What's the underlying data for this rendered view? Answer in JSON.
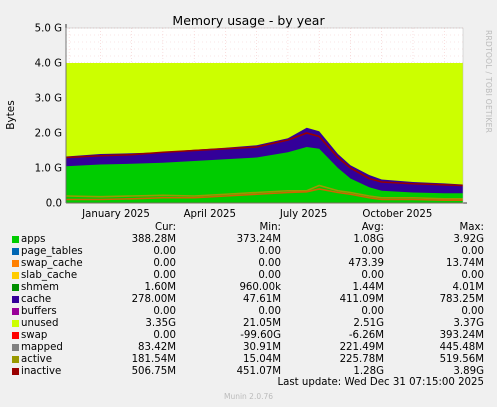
{
  "chart_data": {
    "type": "area",
    "title": "Memory usage - by year",
    "ylabel": "Bytes",
    "ylim": [
      0,
      5.0
    ],
    "yticks": [
      "0.0",
      "1.0 G",
      "2.0 G",
      "3.0 G",
      "4.0 G",
      "5.0 G"
    ],
    "xticks": [
      "January 2025",
      "April 2025",
      "July 2025",
      "October 2025"
    ],
    "grid": true,
    "x_months": [
      -1.1,
      11.6
    ],
    "unused_top_g": 4.0,
    "series": [
      {
        "name": "apps",
        "color": "#00cc00",
        "x": [
          -1.1,
          0,
          1,
          2,
          3,
          4,
          5,
          6,
          6.6,
          7.0,
          7.6,
          8,
          8.6,
          9,
          10,
          11,
          11.6
        ],
        "values": [
          1.05,
          1.1,
          1.12,
          1.15,
          1.2,
          1.25,
          1.3,
          1.45,
          1.6,
          1.55,
          1.0,
          0.7,
          0.45,
          0.35,
          0.3,
          0.28,
          0.28
        ]
      },
      {
        "name": "swap_cache",
        "color": "#ff6600",
        "x": [
          -1.1,
          11.6
        ],
        "values": [
          0.0,
          0.0
        ]
      },
      {
        "name": "cache",
        "color": "#330099",
        "x": [
          -1.1,
          0,
          1,
          2,
          3,
          4,
          5,
          6,
          6.6,
          7.0,
          7.6,
          8,
          8.6,
          9,
          10,
          11,
          11.6
        ],
        "values": [
          0.28,
          0.3,
          0.3,
          0.3,
          0.32,
          0.33,
          0.35,
          0.4,
          0.55,
          0.5,
          0.4,
          0.38,
          0.35,
          0.32,
          0.3,
          0.28,
          0.25
        ]
      },
      {
        "name": "unused",
        "color": "#ccff00",
        "top": 4.0
      },
      {
        "name": "inactive",
        "color": "#990000",
        "x": [
          -1.1,
          0,
          1,
          2,
          3,
          4,
          5,
          6,
          6.6,
          7.0,
          7.6,
          8,
          8.6,
          9,
          10,
          11,
          11.6
        ],
        "values": [
          1.3,
          1.35,
          1.38,
          1.45,
          1.5,
          1.55,
          1.6,
          1.8,
          2.0,
          1.9,
          1.3,
          1.0,
          0.7,
          0.6,
          0.55,
          0.52,
          0.5
        ]
      },
      {
        "name": "active",
        "color": "#999900",
        "x": [
          -1.1,
          0,
          1,
          2,
          3,
          4,
          5,
          6,
          6.6,
          7.0,
          7.6,
          8,
          8.6,
          9,
          10,
          11,
          11.6
        ],
        "values": [
          0.2,
          0.18,
          0.2,
          0.22,
          0.2,
          0.25,
          0.3,
          0.35,
          0.35,
          0.5,
          0.35,
          0.3,
          0.2,
          0.15,
          0.15,
          0.12,
          0.12
        ]
      },
      {
        "name": "mapped",
        "color": "#cc6600",
        "x": [
          -1.1,
          0,
          1,
          2,
          3,
          4,
          5,
          6,
          6.6,
          7.0,
          7.6,
          8,
          8.6,
          9,
          10,
          11,
          11.6
        ],
        "values": [
          0.1,
          0.1,
          0.12,
          0.15,
          0.15,
          0.2,
          0.25,
          0.3,
          0.32,
          0.4,
          0.3,
          0.25,
          0.15,
          0.1,
          0.1,
          0.08,
          0.08
        ]
      }
    ]
  },
  "legend": {
    "columns": [
      "Cur:",
      "Min:",
      "Avg:",
      "Max:"
    ],
    "rows": [
      {
        "name": "apps",
        "color": "#00cc00",
        "values": [
          "388.28M",
          "373.24M",
          "1.08G",
          "3.92G"
        ]
      },
      {
        "name": "page_tables",
        "color": "#0066b3",
        "values": [
          "0.00",
          "0.00",
          "0.00",
          "0.00"
        ]
      },
      {
        "name": "swap_cache",
        "color": "#ff8000",
        "values": [
          "0.00",
          "0.00",
          "473.39",
          "13.74M"
        ]
      },
      {
        "name": "slab_cache",
        "color": "#ffcc00",
        "values": [
          "0.00",
          "0.00",
          "0.00",
          "0.00"
        ]
      },
      {
        "name": "shmem",
        "color": "#008f00",
        "values": [
          "1.60M",
          "960.00k",
          "1.44M",
          "4.01M"
        ]
      },
      {
        "name": "cache",
        "color": "#330099",
        "values": [
          "278.00M",
          "47.61M",
          "411.09M",
          "783.25M"
        ]
      },
      {
        "name": "buffers",
        "color": "#990099",
        "values": [
          "0.00",
          "0.00",
          "0.00",
          "0.00"
        ]
      },
      {
        "name": "unused",
        "color": "#ccff00",
        "values": [
          "3.35G",
          "21.05M",
          "2.51G",
          "3.37G"
        ]
      },
      {
        "name": "swap",
        "color": "#ff0000",
        "values": [
          "0.00",
          "-99.60G",
          "-6.26M",
          "393.24M"
        ]
      },
      {
        "name": "mapped",
        "color": "#808080",
        "values": [
          "83.42M",
          "30.91M",
          "221.49M",
          "445.48M"
        ]
      },
      {
        "name": "active",
        "color": "#999900",
        "values": [
          "181.54M",
          "15.04M",
          "225.78M",
          "519.56M"
        ]
      },
      {
        "name": "inactive",
        "color": "#990000",
        "values": [
          "506.75M",
          "451.07M",
          "1.28G",
          "3.89G"
        ]
      }
    ]
  },
  "last_update": "Last update: Wed Dec 31 07:15:00 2025",
  "side_label": "RRDTOOL / TOBI OETIKER",
  "footer": "Munin 2.0.76"
}
